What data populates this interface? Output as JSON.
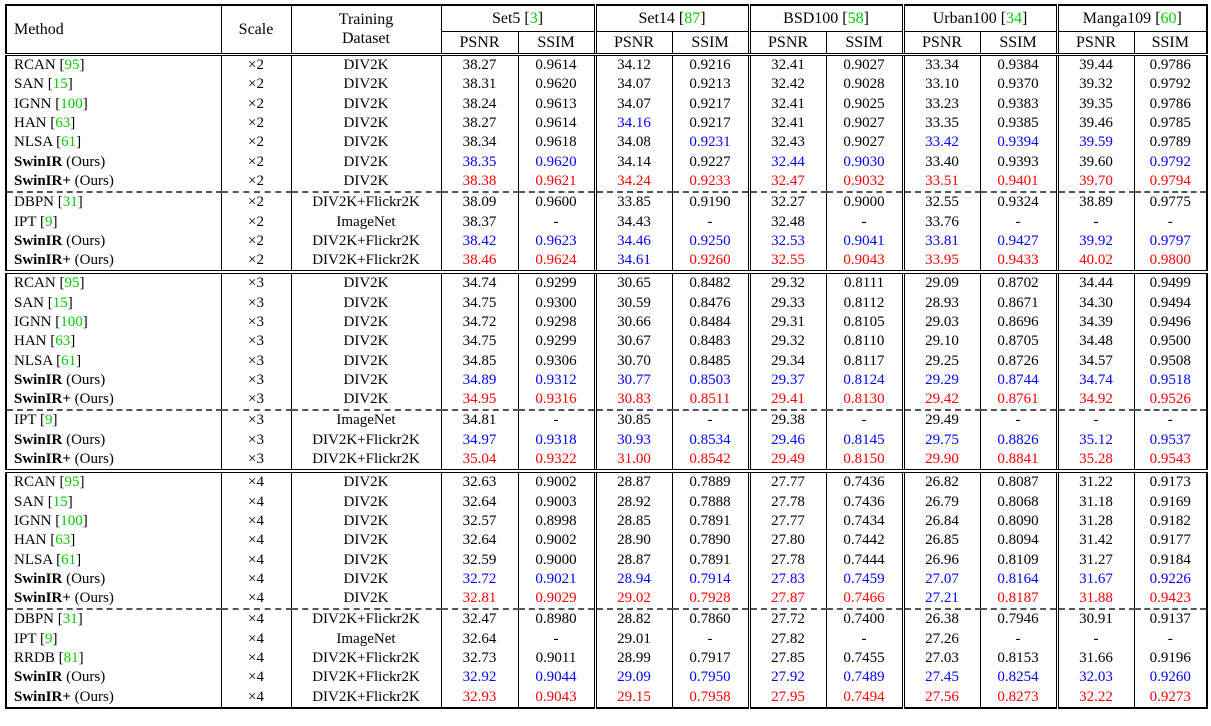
{
  "colors": {
    "black": "#000000",
    "blue": "#0000FF",
    "red": "#FF0000",
    "green": "#00CC00"
  },
  "punct": {
    "open": "[",
    "close": "]"
  },
  "labels": {
    "ours": " (Ours)"
  },
  "header": {
    "method": "Method",
    "scale": "Scale",
    "training_line1": "Training",
    "training_line2": "Dataset",
    "psnr": "PSNR",
    "ssim": "SSIM",
    "benchmarks": [
      {
        "name": "Set5",
        "cite": "3"
      },
      {
        "name": "Set14",
        "cite": "87"
      },
      {
        "name": "BSD100",
        "cite": "58"
      },
      {
        "name": "Urban100",
        "cite": "34"
      },
      {
        "name": "Manga109",
        "cite": "60"
      }
    ]
  },
  "rows": [
    {
      "method": "RCAN",
      "cite": "95",
      "bold": false,
      "ours": false,
      "scale": "×2",
      "dataset": "DIV2K",
      "values": [
        "38.27",
        "0.9614",
        "34.12",
        "0.9216",
        "32.41",
        "0.9027",
        "33.34",
        "0.9384",
        "39.44",
        "0.9786"
      ],
      "colors": "kkkkkkkkkk"
    },
    {
      "method": "SAN",
      "cite": "15",
      "bold": false,
      "ours": false,
      "scale": "×2",
      "dataset": "DIV2K",
      "values": [
        "38.31",
        "0.9620",
        "34.07",
        "0.9213",
        "32.42",
        "0.9028",
        "33.10",
        "0.9370",
        "39.32",
        "0.9792"
      ],
      "colors": "kkkkkkkkkk"
    },
    {
      "method": "IGNN",
      "cite": "100",
      "bold": false,
      "ours": false,
      "scale": "×2",
      "dataset": "DIV2K",
      "values": [
        "38.24",
        "0.9613",
        "34.07",
        "0.9217",
        "32.41",
        "0.9025",
        "33.23",
        "0.9383",
        "39.35",
        "0.9786"
      ],
      "colors": "kkkkkkkkkk"
    },
    {
      "method": "HAN",
      "cite": "63",
      "bold": false,
      "ours": false,
      "scale": "×2",
      "dataset": "DIV2K",
      "values": [
        "38.27",
        "0.9614",
        "34.16",
        "0.9217",
        "32.41",
        "0.9027",
        "33.35",
        "0.9385",
        "39.46",
        "0.9785"
      ],
      "colors": "kkbkkkkkkk"
    },
    {
      "method": "NLSA",
      "cite": "61",
      "bold": false,
      "ours": false,
      "scale": "×2",
      "dataset": "DIV2K",
      "values": [
        "38.34",
        "0.9618",
        "34.08",
        "0.9231",
        "32.43",
        "0.9027",
        "33.42",
        "0.9394",
        "39.59",
        "0.9789"
      ],
      "colors": "kkkbkkbbbk"
    },
    {
      "method": "SwinIR",
      "cite": "",
      "bold": true,
      "ours": true,
      "scale": "×2",
      "dataset": "DIV2K",
      "values": [
        "38.35",
        "0.9620",
        "34.14",
        "0.9227",
        "32.44",
        "0.9030",
        "33.40",
        "0.9393",
        "39.60",
        "0.9792"
      ],
      "colors": "bbkkbbkkkb"
    },
    {
      "method": "SwinIR+",
      "cite": "",
      "bold": true,
      "ours": true,
      "scale": "×2",
      "dataset": "DIV2K",
      "values": [
        "38.38",
        "0.9621",
        "34.24",
        "0.9233",
        "32.47",
        "0.9032",
        "33.51",
        "0.9401",
        "39.70",
        "0.9794"
      ],
      "colors": "rrrrrrrrrr",
      "sep_after": "dashed"
    },
    {
      "method": "DBPN",
      "cite": "31",
      "bold": false,
      "ours": false,
      "scale": "×2",
      "dataset": "DIV2K+Flickr2K",
      "values": [
        "38.09",
        "0.9600",
        "33.85",
        "0.9190",
        "32.27",
        "0.9000",
        "32.55",
        "0.9324",
        "38.89",
        "0.9775"
      ],
      "colors": "kkkkkkkkkk"
    },
    {
      "method": "IPT",
      "cite": "9",
      "bold": false,
      "ours": false,
      "scale": "×2",
      "dataset": "ImageNet",
      "values": [
        "38.37",
        "-",
        "34.43",
        "-",
        "32.48",
        "-",
        "33.76",
        "-",
        "-",
        "-"
      ],
      "colors": "kkkkkkkkkk"
    },
    {
      "method": "SwinIR",
      "cite": "",
      "bold": true,
      "ours": true,
      "scale": "×2",
      "dataset": "DIV2K+Flickr2K",
      "values": [
        "38.42",
        "0.9623",
        "34.46",
        "0.9250",
        "32.53",
        "0.9041",
        "33.81",
        "0.9427",
        "39.92",
        "0.9797"
      ],
      "colors": "bbbbbbbbbb"
    },
    {
      "method": "SwinIR+",
      "cite": "",
      "bold": true,
      "ours": true,
      "scale": "×2",
      "dataset": "DIV2K+Flickr2K",
      "values": [
        "38.46",
        "0.9624",
        "34.61",
        "0.9260",
        "32.55",
        "0.9043",
        "33.95",
        "0.9433",
        "40.02",
        "0.9800"
      ],
      "colors": "rrbrrrrrrr",
      "sep_after": "double"
    },
    {
      "method": "RCAN",
      "cite": "95",
      "bold": false,
      "ours": false,
      "scale": "×3",
      "dataset": "DIV2K",
      "values": [
        "34.74",
        "0.9299",
        "30.65",
        "0.8482",
        "29.32",
        "0.8111",
        "29.09",
        "0.8702",
        "34.44",
        "0.9499"
      ],
      "colors": "kkkkkkkkkk"
    },
    {
      "method": "SAN",
      "cite": "15",
      "bold": false,
      "ours": false,
      "scale": "×3",
      "dataset": "DIV2K",
      "values": [
        "34.75",
        "0.9300",
        "30.59",
        "0.8476",
        "29.33",
        "0.8112",
        "28.93",
        "0.8671",
        "34.30",
        "0.9494"
      ],
      "colors": "kkkkkkkkkk"
    },
    {
      "method": "IGNN",
      "cite": "100",
      "bold": false,
      "ours": false,
      "scale": "×3",
      "dataset": "DIV2K",
      "values": [
        "34.72",
        "0.9298",
        "30.66",
        "0.8484",
        "29.31",
        "0.8105",
        "29.03",
        "0.8696",
        "34.39",
        "0.9496"
      ],
      "colors": "kkkkkkkkkk"
    },
    {
      "method": "HAN",
      "cite": "63",
      "bold": false,
      "ours": false,
      "scale": "×3",
      "dataset": "DIV2K",
      "values": [
        "34.75",
        "0.9299",
        "30.67",
        "0.8483",
        "29.32",
        "0.8110",
        "29.10",
        "0.8705",
        "34.48",
        "0.9500"
      ],
      "colors": "kkkkkkkkkk"
    },
    {
      "method": "NLSA",
      "cite": "61",
      "bold": false,
      "ours": false,
      "scale": "×3",
      "dataset": "DIV2K",
      "values": [
        "34.85",
        "0.9306",
        "30.70",
        "0.8485",
        "29.34",
        "0.8117",
        "29.25",
        "0.8726",
        "34.57",
        "0.9508"
      ],
      "colors": "kkkkkkkkkk"
    },
    {
      "method": "SwinIR",
      "cite": "",
      "bold": true,
      "ours": true,
      "scale": "×3",
      "dataset": "DIV2K",
      "values": [
        "34.89",
        "0.9312",
        "30.77",
        "0.8503",
        "29.37",
        "0.8124",
        "29.29",
        "0.8744",
        "34.74",
        "0.9518"
      ],
      "colors": "bbbbbbbbbb"
    },
    {
      "method": "SwinIR+",
      "cite": "",
      "bold": true,
      "ours": true,
      "scale": "×3",
      "dataset": "DIV2K",
      "values": [
        "34.95",
        "0.9316",
        "30.83",
        "0.8511",
        "29.41",
        "0.8130",
        "29.42",
        "0.8761",
        "34.92",
        "0.9526"
      ],
      "colors": "rrrrrrrrrr",
      "sep_after": "dashed"
    },
    {
      "method": "IPT",
      "cite": "9",
      "bold": false,
      "ours": false,
      "scale": "×3",
      "dataset": "ImageNet",
      "values": [
        "34.81",
        "-",
        "30.85",
        "-",
        "29.38",
        "-",
        "29.49",
        "-",
        "-",
        "-"
      ],
      "colors": "kkkkkkkkkk"
    },
    {
      "method": "SwinIR",
      "cite": "",
      "bold": true,
      "ours": true,
      "scale": "×3",
      "dataset": "DIV2K+Flickr2K",
      "values": [
        "34.97",
        "0.9318",
        "30.93",
        "0.8534",
        "29.46",
        "0.8145",
        "29.75",
        "0.8826",
        "35.12",
        "0.9537"
      ],
      "colors": "bbbbbbbbbb"
    },
    {
      "method": "SwinIR+",
      "cite": "",
      "bold": true,
      "ours": true,
      "scale": "×3",
      "dataset": "DIV2K+Flickr2K",
      "values": [
        "35.04",
        "0.9322",
        "31.00",
        "0.8542",
        "29.49",
        "0.8150",
        "29.90",
        "0.8841",
        "35.28",
        "0.9543"
      ],
      "colors": "rrrrrrrrrr",
      "sep_after": "double"
    },
    {
      "method": "RCAN",
      "cite": "95",
      "bold": false,
      "ours": false,
      "scale": "×4",
      "dataset": "DIV2K",
      "values": [
        "32.63",
        "0.9002",
        "28.87",
        "0.7889",
        "27.77",
        "0.7436",
        "26.82",
        "0.8087",
        "31.22",
        "0.9173"
      ],
      "colors": "kkkkkkkkkk"
    },
    {
      "method": "SAN",
      "cite": "15",
      "bold": false,
      "ours": false,
      "scale": "×4",
      "dataset": "DIV2K",
      "values": [
        "32.64",
        "0.9003",
        "28.92",
        "0.7888",
        "27.78",
        "0.7436",
        "26.79",
        "0.8068",
        "31.18",
        "0.9169"
      ],
      "colors": "kkkkkkkkkk"
    },
    {
      "method": "IGNN",
      "cite": "100",
      "bold": false,
      "ours": false,
      "scale": "×4",
      "dataset": "DIV2K",
      "values": [
        "32.57",
        "0.8998",
        "28.85",
        "0.7891",
        "27.77",
        "0.7434",
        "26.84",
        "0.8090",
        "31.28",
        "0.9182"
      ],
      "colors": "kkkkkkkkkk"
    },
    {
      "method": "HAN",
      "cite": "63",
      "bold": false,
      "ours": false,
      "scale": "×4",
      "dataset": "DIV2K",
      "values": [
        "32.64",
        "0.9002",
        "28.90",
        "0.7890",
        "27.80",
        "0.7442",
        "26.85",
        "0.8094",
        "31.42",
        "0.9177"
      ],
      "colors": "kkkkkkkkkk"
    },
    {
      "method": "NLSA",
      "cite": "61",
      "bold": false,
      "ours": false,
      "scale": "×4",
      "dataset": "DIV2K",
      "values": [
        "32.59",
        "0.9000",
        "28.87",
        "0.7891",
        "27.78",
        "0.7444",
        "26.96",
        "0.8109",
        "31.27",
        "0.9184"
      ],
      "colors": "kkkkkkkkkk"
    },
    {
      "method": "SwinIR",
      "cite": "",
      "bold": true,
      "ours": true,
      "scale": "×4",
      "dataset": "DIV2K",
      "values": [
        "32.72",
        "0.9021",
        "28.94",
        "0.7914",
        "27.83",
        "0.7459",
        "27.07",
        "0.8164",
        "31.67",
        "0.9226"
      ],
      "colors": "bbbbbbbbbb"
    },
    {
      "method": "SwinIR+",
      "cite": "",
      "bold": true,
      "ours": true,
      "scale": "×4",
      "dataset": "DIV2K",
      "values": [
        "32.81",
        "0.9029",
        "29.02",
        "0.7928",
        "27.87",
        "0.7466",
        "27.21",
        "0.8187",
        "31.88",
        "0.9423"
      ],
      "colors": "rrrrrrbrrr",
      "sep_after": "dashed"
    },
    {
      "method": "DBPN",
      "cite": "31",
      "bold": false,
      "ours": false,
      "scale": "×4",
      "dataset": "DIV2K+Flickr2K",
      "values": [
        "32.47",
        "0.8980",
        "28.82",
        "0.7860",
        "27.72",
        "0.7400",
        "26.38",
        "0.7946",
        "30.91",
        "0.9137"
      ],
      "colors": "kkkkkkkkkk"
    },
    {
      "method": "IPT",
      "cite": "9",
      "bold": false,
      "ours": false,
      "scale": "×4",
      "dataset": "ImageNet",
      "values": [
        "32.64",
        "-",
        "29.01",
        "-",
        "27.82",
        "-",
        "27.26",
        "-",
        "-",
        "-"
      ],
      "colors": "kkkkkkkkkk"
    },
    {
      "method": "RRDB",
      "cite": "81",
      "bold": false,
      "ours": false,
      "scale": "×4",
      "dataset": "DIV2K+Flickr2K",
      "values": [
        "32.73",
        "0.9011",
        "28.99",
        "0.7917",
        "27.85",
        "0.7455",
        "27.03",
        "0.8153",
        "31.66",
        "0.9196"
      ],
      "colors": "kkkkkkkkkk"
    },
    {
      "method": "SwinIR",
      "cite": "",
      "bold": true,
      "ours": true,
      "scale": "×4",
      "dataset": "DIV2K+Flickr2K",
      "values": [
        "32.92",
        "0.9044",
        "29.09",
        "0.7950",
        "27.92",
        "0.7489",
        "27.45",
        "0.8254",
        "32.03",
        "0.9260"
      ],
      "colors": "bbbbbbbbbb"
    },
    {
      "method": "SwinIR+",
      "cite": "",
      "bold": true,
      "ours": true,
      "scale": "×4",
      "dataset": "DIV2K+Flickr2K",
      "values": [
        "32.93",
        "0.9043",
        "29.15",
        "0.7958",
        "27.95",
        "0.7494",
        "27.56",
        "0.8273",
        "32.22",
        "0.9273"
      ],
      "colors": "rrrrrrrrrr"
    }
  ]
}
